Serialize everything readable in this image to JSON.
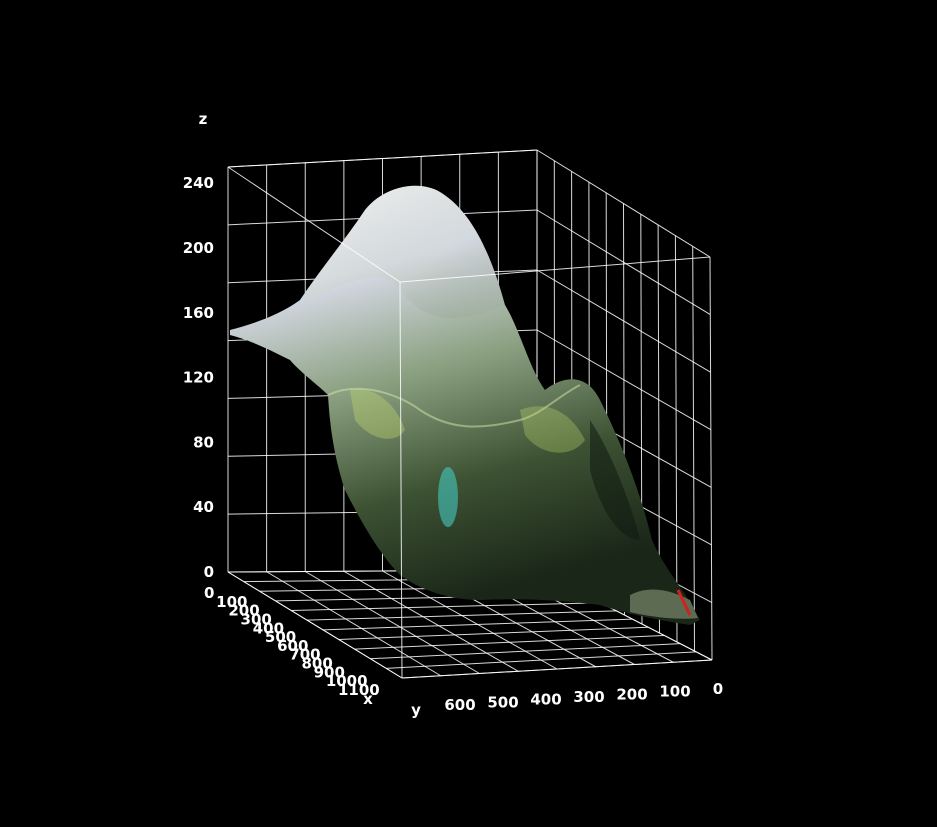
{
  "chart_data": {
    "type": "surface3d",
    "title": "",
    "axes": {
      "x": {
        "label": "x",
        "ticks": [
          "0",
          "100",
          "200",
          "300",
          "400",
          "500",
          "600",
          "700",
          "800",
          "900",
          "1000",
          "1100"
        ],
        "range": [
          0,
          1100
        ]
      },
      "y": {
        "label": "y",
        "ticks": [
          "600",
          "500",
          "400",
          "300",
          "200",
          "100",
          "0"
        ],
        "range": [
          0,
          600
        ]
      },
      "z": {
        "label": "z",
        "ticks": [
          "0",
          "40",
          "80",
          "120",
          "160",
          "200",
          "240"
        ],
        "range": [
          0,
          250
        ]
      }
    },
    "grid": true,
    "surface": {
      "description_colors": [
        "#e9e6f7",
        "#9fb39a",
        "#3c4f34",
        "#c8e070",
        "#45c8c0"
      ],
      "peak_z": 245
    }
  }
}
